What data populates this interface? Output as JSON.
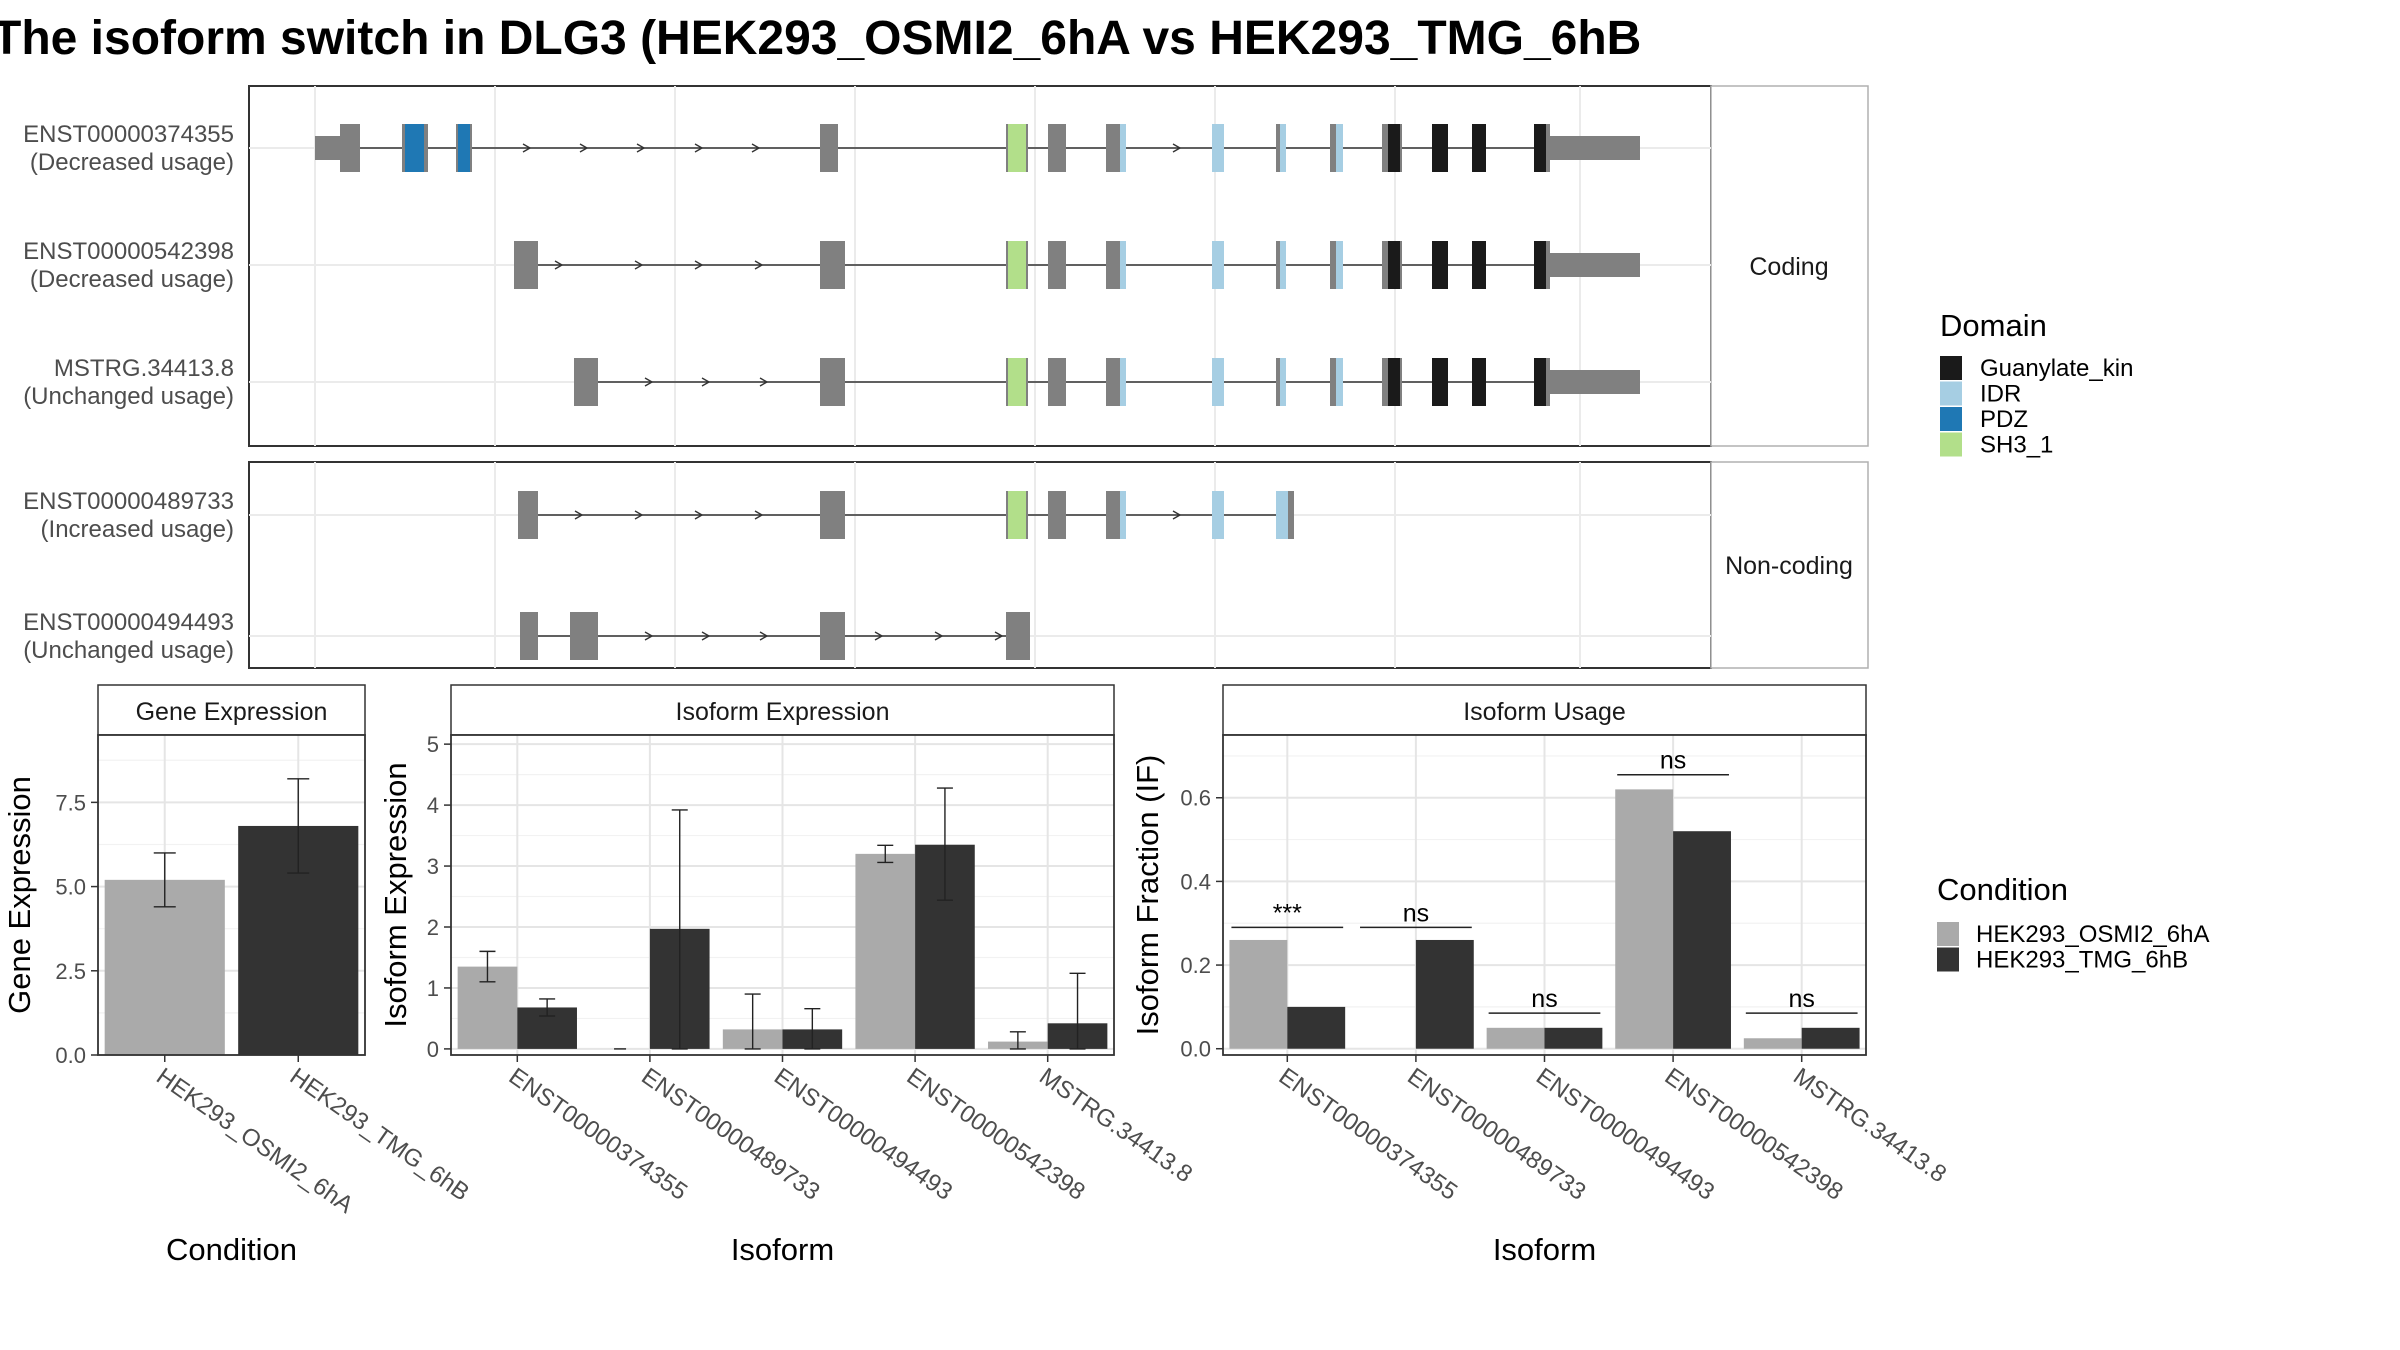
{
  "title": "The isoform switch in DLG3 (HEK293_OSMI2_6hA vs HEK293_TMG_6hB",
  "structure": {
    "facets": [
      "Coding",
      "Non-coding"
    ],
    "transcripts": [
      {
        "id": "ENST00000374355",
        "usage": "(Decreased usage)",
        "group": 0
      },
      {
        "id": "ENST00000542398",
        "usage": "(Decreased usage)",
        "group": 0
      },
      {
        "id": "MSTRG.34413.8",
        "usage": "(Unchanged usage)",
        "group": 0
      },
      {
        "id": "ENST00000489733",
        "usage": "(Increased usage)",
        "group": 1
      },
      {
        "id": "ENST00000494493",
        "usage": "(Unchanged usage)",
        "group": 1
      }
    ]
  },
  "legend_domain": {
    "title": "Domain",
    "items": [
      {
        "label": "Guanylate_kin",
        "color": "#1a1a1a"
      },
      {
        "label": "IDR",
        "color": "#a6cee3"
      },
      {
        "label": "PDZ",
        "color": "#1f78b4"
      },
      {
        "label": "SH3_1",
        "color": "#b2df8a"
      }
    ]
  },
  "legend_condition": {
    "title": "Condition",
    "items": [
      {
        "label": "HEK293_OSMI2_6hA",
        "color": "#aaaaaa"
      },
      {
        "label": "HEK293_TMG_6hB",
        "color": "#333333"
      }
    ]
  },
  "chart_data": [
    {
      "type": "bar",
      "title": "Gene Expression",
      "xlabel": "Condition",
      "ylabel": "Gene Expression",
      "ylim": [
        0,
        9.5
      ],
      "yticks": [
        0.0,
        2.5,
        5.0,
        7.5
      ],
      "ytick_labels": [
        "0.0",
        "2.5",
        "5.0",
        "7.5"
      ],
      "categories": [
        "HEK293_OSMI2_6hA",
        "HEK293_TMG_6hB"
      ],
      "values": [
        5.2,
        6.8
      ],
      "error_low": [
        4.4,
        5.4
      ],
      "error_high": [
        6.0,
        8.2
      ],
      "colors": [
        "#aaaaaa",
        "#333333"
      ]
    },
    {
      "type": "bar",
      "title": "Isoform Expression",
      "xlabel": "Isoform",
      "ylabel": "Isoform Expression",
      "ylim": [
        -0.1,
        5.15
      ],
      "yticks": [
        0,
        1,
        2,
        3,
        4,
        5
      ],
      "ytick_labels": [
        "0",
        "1",
        "2",
        "3",
        "4",
        "5"
      ],
      "categories": [
        "ENST00000374355",
        "ENST00000489733",
        "ENST00000494493",
        "ENST00000542398",
        "MSTRG.34413.8"
      ],
      "series": [
        {
          "name": "HEK293_OSMI2_6hA",
          "color": "#aaaaaa",
          "values": [
            1.35,
            0.0,
            0.32,
            3.2,
            0.12
          ],
          "error_low": [
            1.1,
            0.0,
            0.0,
            3.06,
            0.0
          ],
          "error_high": [
            1.6,
            0.0,
            0.9,
            3.34,
            0.28
          ]
        },
        {
          "name": "HEK293_TMG_6hB",
          "color": "#333333",
          "values": [
            0.68,
            1.97,
            0.32,
            3.35,
            0.42
          ],
          "error_low": [
            0.54,
            0.0,
            0.0,
            2.44,
            0.0
          ],
          "error_high": [
            0.82,
            3.92,
            0.66,
            4.28,
            1.24
          ]
        }
      ]
    },
    {
      "type": "bar",
      "title": "Isoform Usage",
      "xlabel": "Isoform",
      "ylabel": "Isoform Fraction (IF)",
      "ylim": [
        -0.015,
        0.75
      ],
      "yticks": [
        0.0,
        0.2,
        0.4,
        0.6
      ],
      "ytick_labels": [
        "0.0",
        "0.2",
        "0.4",
        "0.6"
      ],
      "categories": [
        "ENST00000374355",
        "ENST00000489733",
        "ENST00000494493",
        "ENST00000542398",
        "MSTRG.34413.8"
      ],
      "series": [
        {
          "name": "HEK293_OSMI2_6hA",
          "color": "#aaaaaa",
          "values": [
            0.26,
            0.0,
            0.05,
            0.62,
            0.025
          ]
        },
        {
          "name": "HEK293_TMG_6hB",
          "color": "#333333",
          "values": [
            0.1,
            0.26,
            0.05,
            0.52,
            0.05
          ]
        }
      ],
      "significance": [
        "***",
        "ns",
        "ns",
        "ns",
        "ns"
      ],
      "significance_y": [
        0.29,
        0.29,
        0.085,
        0.655,
        0.085
      ]
    }
  ]
}
